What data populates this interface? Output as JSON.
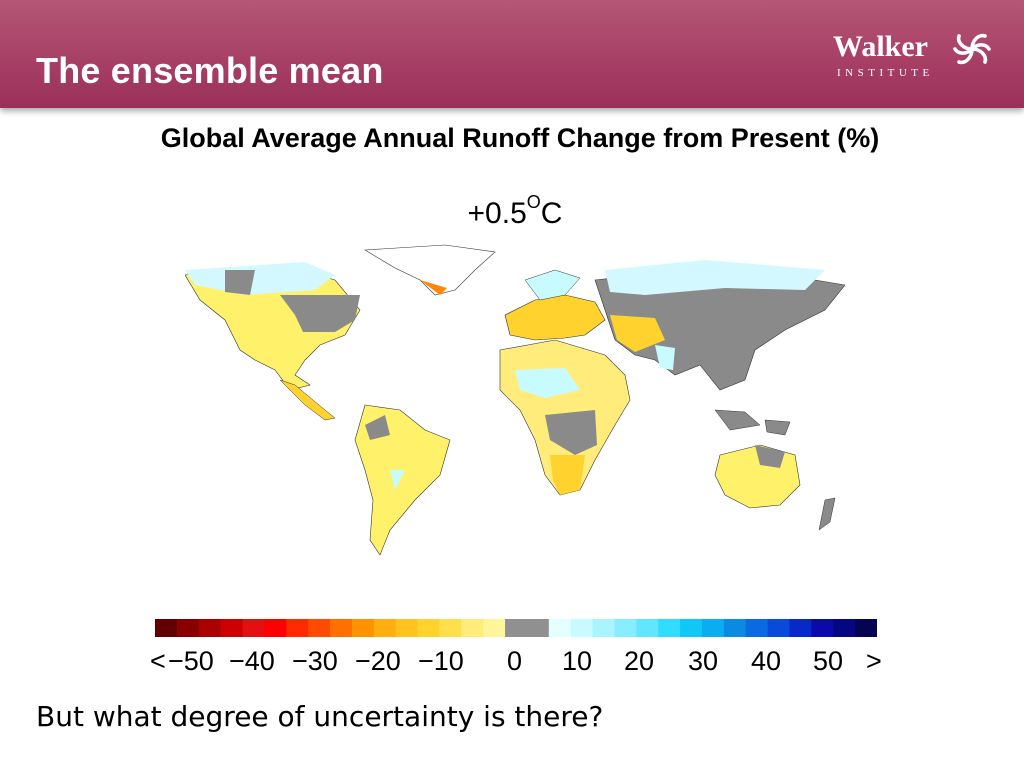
{
  "slide": {
    "title": "The ensemble mean"
  },
  "logo": {
    "name": "Walker",
    "subtitle": "INSTITUTE"
  },
  "chart": {
    "title": "Global Average Annual Runoff Change from Present (%)",
    "scenario_value": "+0.5",
    "scenario_degree": "O",
    "scenario_unit": "C"
  },
  "colorbar": {
    "labels": [
      "<",
      "−50",
      "−40",
      "−30",
      "−20",
      "−10",
      "0",
      "10",
      "20",
      "30",
      "40",
      "50",
      ">"
    ],
    "colors": [
      "#600000",
      "#8a0000",
      "#aa0000",
      "#cc0000",
      "#e21010",
      "#ff0000",
      "#ff2a00",
      "#ff4a00",
      "#ff7000",
      "#ff9200",
      "#ffae10",
      "#ffc21e",
      "#ffd22e",
      "#ffe04a",
      "#ffec7a",
      "#fff69a",
      "#909090",
      "#909090",
      "#e4ffff",
      "#c8fbff",
      "#aaf4ff",
      "#88eeff",
      "#60e6ff",
      "#30dcff",
      "#10c8f6",
      "#0aaef0",
      "#0a8ae0",
      "#0a6ae0",
      "#0a4ad8",
      "#0828c8",
      "#0a0aa8",
      "#060680",
      "#040452"
    ]
  },
  "footer": {
    "question": "But what degree of uncertainty is there?"
  }
}
